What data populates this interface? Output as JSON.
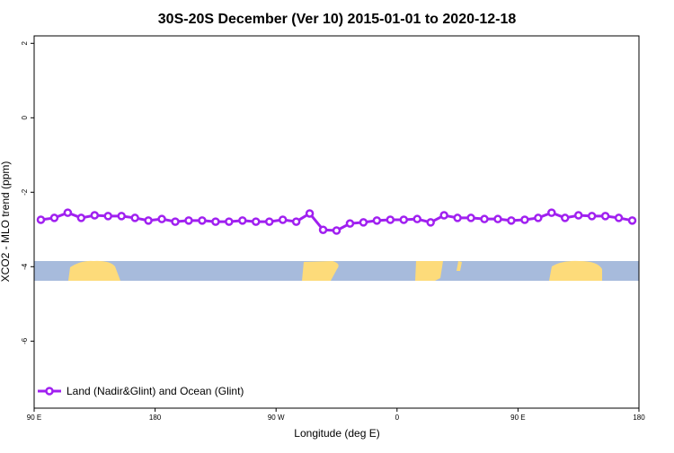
{
  "chart_data": {
    "type": "line",
    "title": "30S-20S December (Ver 10)   2015-01-01 to 2020-12-18",
    "x_label": "Longitude (deg E)",
    "y_label": "XCO2 - MLO trend (ppm)",
    "x": [
      95,
      105,
      115,
      125,
      135,
      145,
      155,
      165,
      175,
      185,
      195,
      205,
      215,
      225,
      235,
      245,
      255,
      265,
      275,
      285,
      295,
      305,
      315,
      325,
      335,
      345,
      355,
      365,
      375,
      385,
      395,
      405,
      415,
      425,
      435,
      445,
      455,
      465,
      475,
      485,
      495,
      505,
      515,
      525,
      535
    ],
    "series": [
      {
        "name": "Land (Nadir&Glint) and Ocean (Glint)",
        "color": "#a020f0",
        "values": [
          -2.74,
          -2.69,
          -2.55,
          -2.69,
          -2.62,
          -2.64,
          -2.64,
          -2.69,
          -2.76,
          -2.72,
          -2.79,
          -2.76,
          -2.76,
          -2.79,
          -2.79,
          -2.76,
          -2.79,
          -2.79,
          -2.74,
          -2.79,
          -2.57,
          -3.01,
          -3.03,
          -2.84,
          -2.81,
          -2.76,
          -2.74,
          -2.74,
          -2.72,
          -2.81,
          -2.62,
          -2.69,
          -2.69,
          -2.72,
          -2.72,
          -2.76,
          -2.74,
          -2.69,
          -2.55,
          -2.69,
          -2.62,
          -2.64,
          -2.64,
          -2.69,
          -2.76
        ]
      }
    ],
    "xlim": [
      90,
      540
    ],
    "xticks": [
      {
        "value": 90,
        "label": "90 E"
      },
      180,
      {
        "value": 270,
        "label": "90 W"
      },
      {
        "value": 360,
        "label": "0"
      },
      {
        "value": 450,
        "label": "90 E"
      },
      {
        "value": 540,
        "label": "180"
      }
    ],
    "ylim": [
      -7.8,
      2.2
    ],
    "yticks": [
      2,
      0,
      -2,
      -4,
      -6
    ],
    "legend": "bottom-left"
  }
}
